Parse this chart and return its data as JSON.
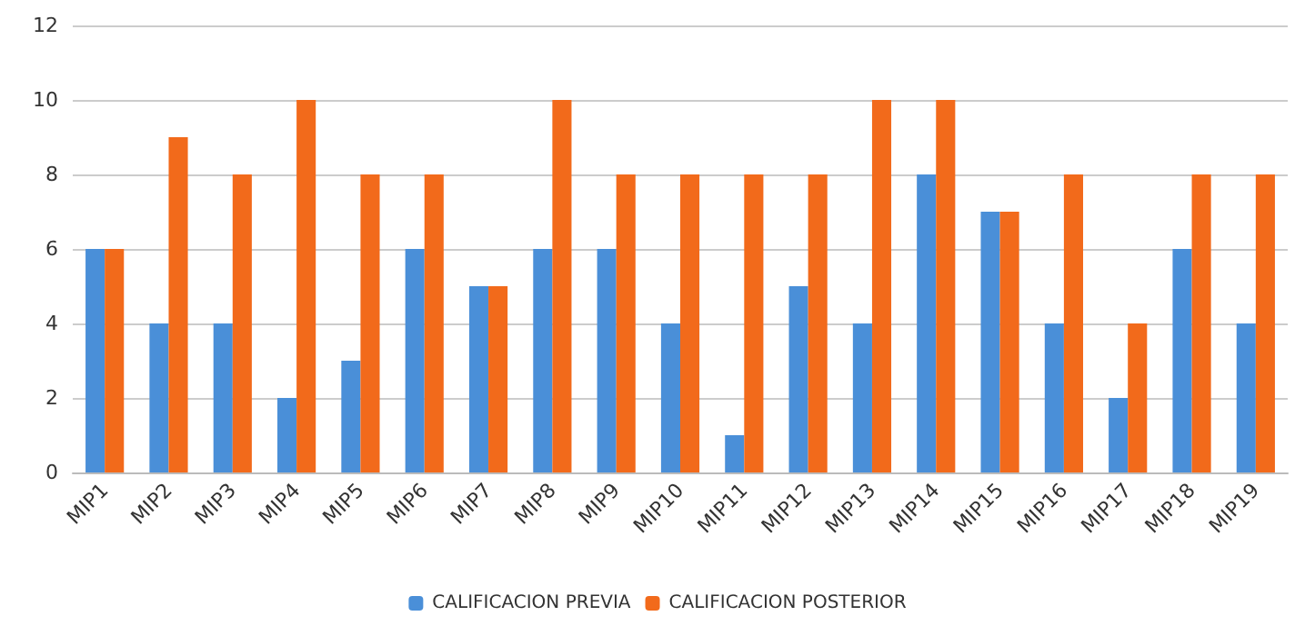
{
  "chart_data": {
    "type": "bar",
    "categories": [
      "MIP1",
      "MIP2",
      "MIP3",
      "MIP4",
      "MIP5",
      "MIP6",
      "MIP7",
      "MIP8",
      "MIP9",
      "MIP10",
      "MIP11",
      "MIP12",
      "MIP13",
      "MIP14",
      "MIP15",
      "MIP16",
      "MIP17",
      "MIP18",
      "MIP19"
    ],
    "series": [
      {
        "name": "CALIFICACION PREVIA",
        "color": "#4a8fd8",
        "values": [
          6,
          4,
          4,
          2,
          3,
          6,
          5,
          6,
          6,
          4,
          1,
          5,
          4,
          8,
          7,
          4,
          2,
          6,
          4
        ]
      },
      {
        "name": "CALIFICACION POSTERIOR",
        "color": "#f26a1b",
        "values": [
          6,
          9,
          8,
          10,
          8,
          8,
          5,
          10,
          8,
          8,
          8,
          8,
          10,
          10,
          7,
          8,
          4,
          8,
          8
        ]
      }
    ],
    "ylim": [
      0,
      12
    ],
    "yticks": [
      0,
      2,
      4,
      6,
      8,
      10,
      12
    ],
    "grid": "y",
    "legend": "bottom"
  }
}
